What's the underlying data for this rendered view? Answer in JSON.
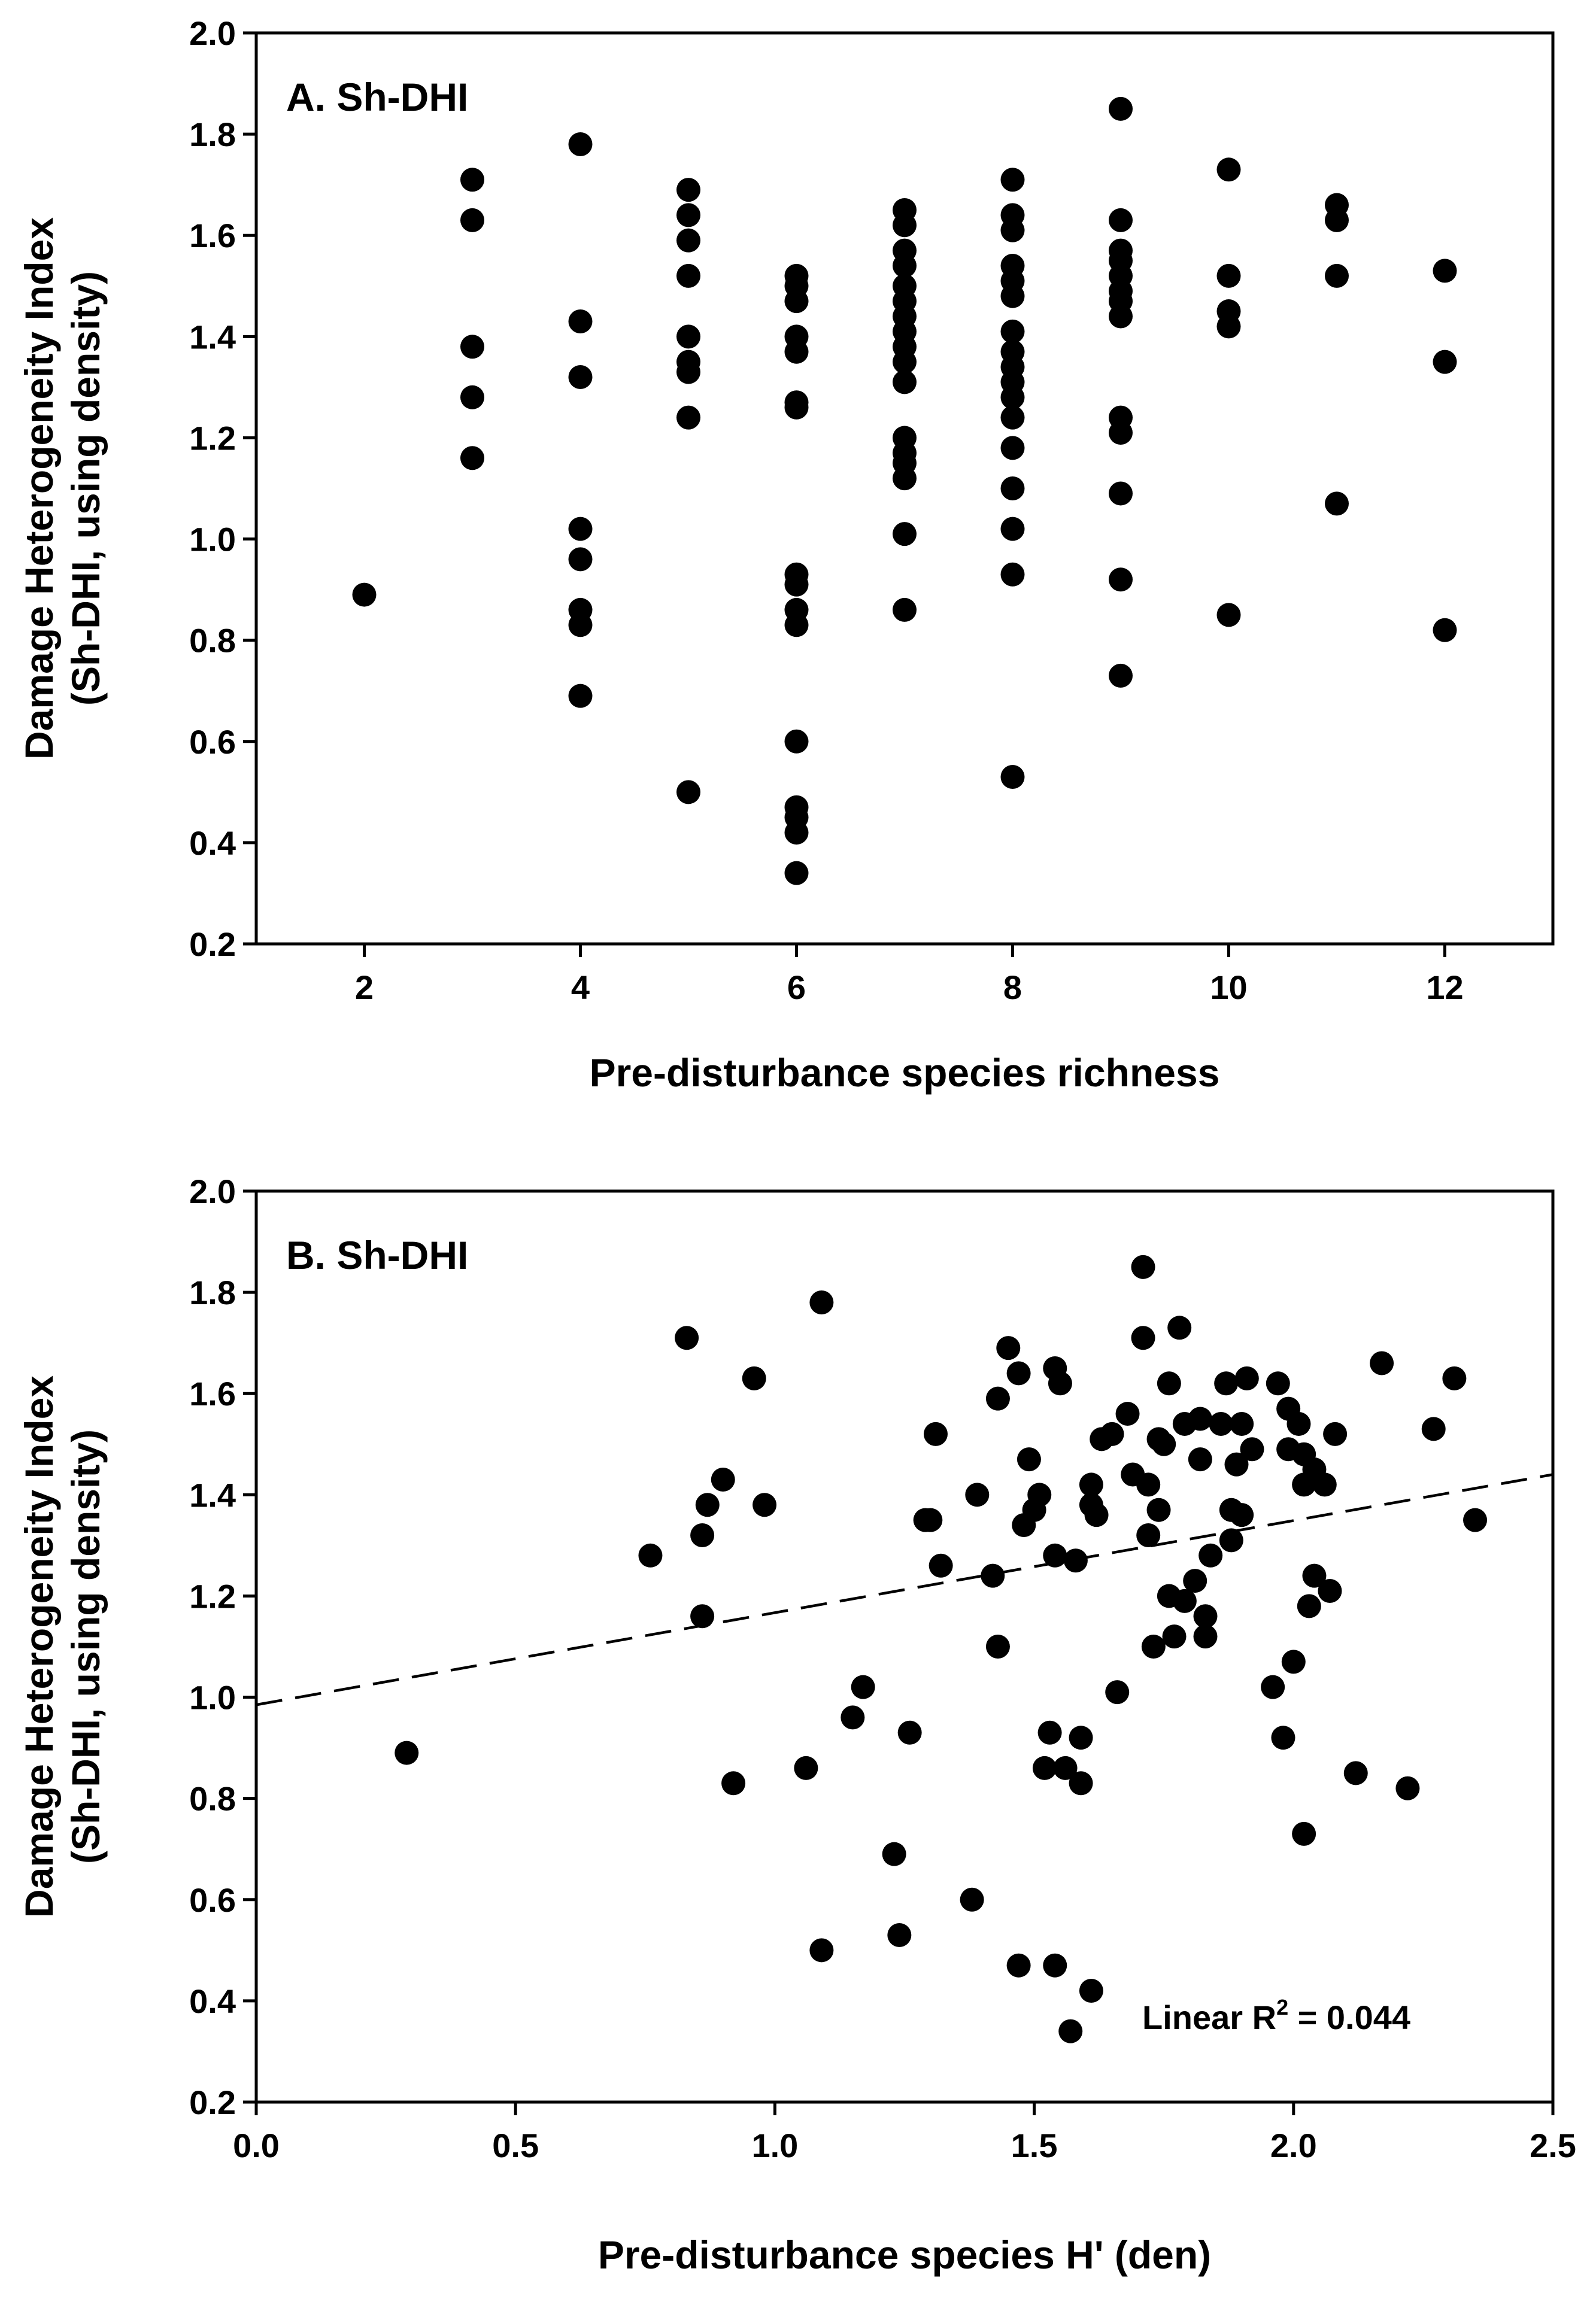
{
  "chart_data": [
    {
      "type": "scatter",
      "panel_label": "A. Sh-DHI",
      "xlabel": "Pre-disturbance species richness",
      "ylabel_line1": "Damage Heterogeneity Index",
      "ylabel_line2": "(Sh-DHI, using density)",
      "xlim": [
        1,
        13
      ],
      "ylim": [
        0.2,
        2.0
      ],
      "xticks": [
        2,
        4,
        6,
        8,
        10,
        12
      ],
      "xtick_labels": [
        "2",
        "4",
        "6",
        "8",
        "10",
        "12"
      ],
      "yticks": [
        0.2,
        0.4,
        0.6,
        0.8,
        1.0,
        1.2,
        1.4,
        1.6,
        1.8,
        2.0
      ],
      "ytick_labels": [
        "0.2",
        "0.4",
        "0.6",
        "0.8",
        "1.0",
        "1.2",
        "1.4",
        "1.6",
        "1.8",
        "2.0"
      ],
      "grid": false,
      "points": [
        [
          2,
          0.89
        ],
        [
          3,
          1.71
        ],
        [
          3,
          1.63
        ],
        [
          3,
          1.38
        ],
        [
          3,
          1.28
        ],
        [
          3,
          1.16
        ],
        [
          4,
          1.78
        ],
        [
          4,
          1.43
        ],
        [
          4,
          1.32
        ],
        [
          4,
          1.02
        ],
        [
          4,
          0.96
        ],
        [
          4,
          0.86
        ],
        [
          4,
          0.83
        ],
        [
          4,
          0.69
        ],
        [
          5,
          1.69
        ],
        [
          5,
          1.64
        ],
        [
          5,
          1.59
        ],
        [
          5,
          1.52
        ],
        [
          5,
          1.4
        ],
        [
          5,
          1.35
        ],
        [
          5,
          1.33
        ],
        [
          5,
          1.24
        ],
        [
          5,
          0.5
        ],
        [
          6,
          1.52
        ],
        [
          6,
          1.5
        ],
        [
          6,
          1.47
        ],
        [
          6,
          1.4
        ],
        [
          6,
          1.37
        ],
        [
          6,
          1.27
        ],
        [
          6,
          1.26
        ],
        [
          6,
          0.93
        ],
        [
          6,
          0.91
        ],
        [
          6,
          0.86
        ],
        [
          6,
          0.83
        ],
        [
          6,
          0.6
        ],
        [
          6,
          0.47
        ],
        [
          6,
          0.45
        ],
        [
          6,
          0.42
        ],
        [
          6,
          0.34
        ],
        [
          7,
          1.65
        ],
        [
          7,
          1.62
        ],
        [
          7,
          1.57
        ],
        [
          7,
          1.54
        ],
        [
          7,
          1.5
        ],
        [
          7,
          1.47
        ],
        [
          7,
          1.44
        ],
        [
          7,
          1.41
        ],
        [
          7,
          1.38
        ],
        [
          7,
          1.35
        ],
        [
          7,
          1.31
        ],
        [
          7,
          1.2
        ],
        [
          7,
          1.17
        ],
        [
          7,
          1.15
        ],
        [
          7,
          1.12
        ],
        [
          7,
          1.01
        ],
        [
          7,
          0.86
        ],
        [
          8,
          1.71
        ],
        [
          8,
          1.64
        ],
        [
          8,
          1.61
        ],
        [
          8,
          1.54
        ],
        [
          8,
          1.51
        ],
        [
          8,
          1.48
        ],
        [
          8,
          1.41
        ],
        [
          8,
          1.37
        ],
        [
          8,
          1.34
        ],
        [
          8,
          1.31
        ],
        [
          8,
          1.28
        ],
        [
          8,
          1.24
        ],
        [
          8,
          1.18
        ],
        [
          8,
          1.1
        ],
        [
          8,
          1.02
        ],
        [
          8,
          0.93
        ],
        [
          8,
          0.53
        ],
        [
          9,
          1.85
        ],
        [
          9,
          1.63
        ],
        [
          9,
          1.57
        ],
        [
          9,
          1.55
        ],
        [
          9,
          1.52
        ],
        [
          9,
          1.49
        ],
        [
          9,
          1.47
        ],
        [
          9,
          1.44
        ],
        [
          9,
          1.24
        ],
        [
          9,
          1.21
        ],
        [
          9,
          1.09
        ],
        [
          9,
          0.92
        ],
        [
          9,
          0.73
        ],
        [
          10,
          1.73
        ],
        [
          10,
          1.52
        ],
        [
          10,
          1.45
        ],
        [
          10,
          1.42
        ],
        [
          10,
          0.85
        ],
        [
          11,
          1.66
        ],
        [
          11,
          1.63
        ],
        [
          11,
          1.52
        ],
        [
          11,
          1.07
        ],
        [
          12,
          1.53
        ],
        [
          12,
          1.35
        ],
        [
          12,
          0.82
        ]
      ]
    },
    {
      "type": "scatter",
      "panel_label": "B. Sh-DHI",
      "xlabel": "Pre-disturbance species H' (den)",
      "ylabel_line1": "Damage Heterogeneity Index",
      "ylabel_line2": "(Sh-DHI, using density)",
      "xlim": [
        0.0,
        2.5
      ],
      "ylim": [
        0.2,
        2.0
      ],
      "xticks": [
        0.0,
        0.5,
        1.0,
        1.5,
        2.0,
        2.5
      ],
      "xtick_labels": [
        "0.0",
        "0.5",
        "1.0",
        "1.5",
        "2.0",
        "2.5"
      ],
      "yticks": [
        0.2,
        0.4,
        0.6,
        0.8,
        1.0,
        1.2,
        1.4,
        1.6,
        1.8,
        2.0
      ],
      "ytick_labels": [
        "0.2",
        "0.4",
        "0.6",
        "0.8",
        "1.0",
        "1.2",
        "1.4",
        "1.6",
        "1.8",
        "2.0"
      ],
      "grid": false,
      "fit_line": {
        "style": "dashed",
        "x": [
          0.0,
          2.5
        ],
        "y": [
          0.985,
          1.44
        ]
      },
      "annotation": {
        "prefix": "Linear R",
        "superscript": "2",
        "suffix": " = 0.044"
      },
      "points": [
        [
          0.29,
          0.89
        ],
        [
          0.76,
          1.28
        ],
        [
          0.83,
          1.71
        ],
        [
          0.86,
          1.32
        ],
        [
          0.87,
          1.38
        ],
        [
          0.86,
          1.16
        ],
        [
          0.9,
          1.43
        ],
        [
          0.92,
          0.83
        ],
        [
          0.96,
          1.63
        ],
        [
          0.98,
          1.38
        ],
        [
          1.06,
          0.86
        ],
        [
          1.09,
          1.78
        ],
        [
          1.09,
          0.5
        ],
        [
          1.15,
          0.96
        ],
        [
          1.17,
          1.02
        ],
        [
          1.23,
          0.69
        ],
        [
          1.24,
          0.53
        ],
        [
          1.26,
          0.93
        ],
        [
          1.29,
          1.35
        ],
        [
          1.3,
          1.35
        ],
        [
          1.31,
          1.52
        ],
        [
          1.32,
          1.26
        ],
        [
          1.38,
          0.6
        ],
        [
          1.39,
          1.4
        ],
        [
          1.42,
          1.24
        ],
        [
          1.43,
          1.1
        ],
        [
          1.43,
          1.59
        ],
        [
          1.45,
          1.69
        ],
        [
          1.47,
          1.64
        ],
        [
          1.47,
          0.47
        ],
        [
          1.48,
          1.34
        ],
        [
          1.49,
          1.47
        ],
        [
          1.5,
          1.37
        ],
        [
          1.51,
          1.4
        ],
        [
          1.52,
          0.86
        ],
        [
          1.53,
          0.93
        ],
        [
          1.54,
          1.65
        ],
        [
          1.55,
          1.62
        ],
        [
          1.54,
          1.28
        ],
        [
          1.54,
          0.47
        ],
        [
          1.56,
          0.86
        ],
        [
          1.57,
          0.34
        ],
        [
          1.58,
          1.27
        ],
        [
          1.59,
          0.92
        ],
        [
          1.59,
          0.83
        ],
        [
          1.61,
          1.42
        ],
        [
          1.61,
          1.38
        ],
        [
          1.62,
          1.36
        ],
        [
          1.61,
          0.42
        ],
        [
          1.63,
          1.51
        ],
        [
          1.65,
          1.52
        ],
        [
          1.66,
          1.01
        ],
        [
          1.68,
          1.56
        ],
        [
          1.69,
          1.44
        ],
        [
          1.71,
          1.85
        ],
        [
          1.71,
          1.71
        ],
        [
          1.72,
          1.42
        ],
        [
          1.72,
          1.32
        ],
        [
          1.73,
          1.1
        ],
        [
          1.74,
          1.37
        ],
        [
          1.74,
          1.51
        ],
        [
          1.75,
          1.5
        ],
        [
          1.76,
          1.62
        ],
        [
          1.76,
          1.2
        ],
        [
          1.77,
          1.12
        ],
        [
          1.78,
          1.73
        ],
        [
          1.79,
          1.54
        ],
        [
          1.79,
          1.19
        ],
        [
          1.81,
          1.23
        ],
        [
          1.82,
          1.47
        ],
        [
          1.82,
          1.55
        ],
        [
          1.83,
          1.16
        ],
        [
          1.83,
          1.12
        ],
        [
          1.84,
          1.28
        ],
        [
          1.86,
          1.54
        ],
        [
          1.87,
          1.62
        ],
        [
          1.88,
          1.31
        ],
        [
          1.88,
          1.37
        ],
        [
          1.89,
          1.46
        ],
        [
          1.9,
          1.54
        ],
        [
          1.9,
          1.36
        ],
        [
          1.91,
          1.63
        ],
        [
          1.92,
          1.49
        ],
        [
          1.96,
          1.02
        ],
        [
          1.97,
          1.62
        ],
        [
          1.98,
          0.92
        ],
        [
          1.99,
          1.57
        ],
        [
          1.99,
          1.49
        ],
        [
          2.0,
          1.07
        ],
        [
          2.01,
          1.54
        ],
        [
          2.02,
          1.48
        ],
        [
          2.02,
          1.42
        ],
        [
          2.02,
          0.73
        ],
        [
          2.03,
          1.18
        ],
        [
          2.04,
          1.45
        ],
        [
          2.04,
          1.24
        ],
        [
          2.06,
          1.42
        ],
        [
          2.07,
          1.21
        ],
        [
          2.08,
          1.52
        ],
        [
          2.12,
          0.85
        ],
        [
          2.17,
          1.66
        ],
        [
          2.22,
          0.82
        ],
        [
          2.27,
          1.53
        ],
        [
          2.31,
          1.63
        ],
        [
          2.35,
          1.35
        ]
      ]
    }
  ]
}
